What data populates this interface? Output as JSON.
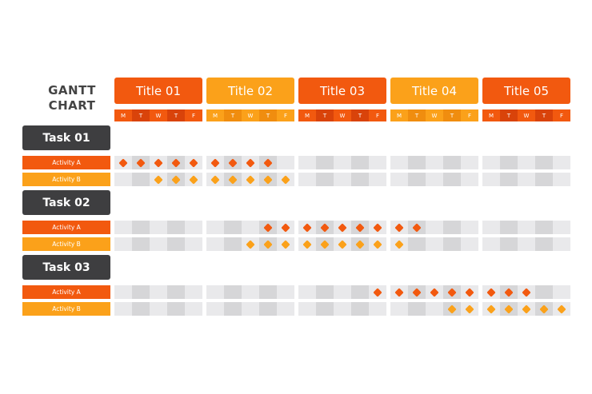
{
  "chart_data": {
    "type": "gantt",
    "title_lines": [
      "GANTT",
      "CHART"
    ],
    "weeks": [
      "Title 01",
      "Title 02",
      "Title 03",
      "Title 04",
      "Title 05"
    ],
    "days": [
      "M",
      "T",
      "W",
      "T",
      "F"
    ],
    "tasks": [
      {
        "name": "Task 01",
        "activities": [
          {
            "name": "Activity A",
            "color": "#f2590f",
            "active_days": [
              0,
              1,
              2,
              3,
              4,
              5,
              6,
              7,
              8
            ]
          },
          {
            "name": "Activity B",
            "color": "#fba11a",
            "active_days": [
              2,
              3,
              4,
              5,
              6,
              7,
              8,
              9
            ]
          }
        ]
      },
      {
        "name": "Task 02",
        "activities": [
          {
            "name": "Activity A",
            "color": "#f2590f",
            "active_days": [
              8,
              9,
              10,
              11,
              12,
              13,
              14,
              15,
              16
            ]
          },
          {
            "name": "Activity B",
            "color": "#fba11a",
            "active_days": [
              7,
              8,
              9,
              10,
              11,
              12,
              13,
              14,
              15
            ]
          }
        ]
      },
      {
        "name": "Task 03",
        "activities": [
          {
            "name": "Activity A",
            "color": "#f2590f",
            "active_days": [
              14,
              15,
              16,
              17,
              18,
              19,
              20,
              21,
              22
            ]
          },
          {
            "name": "Activity B",
            "color": "#fba11a",
            "active_days": [
              18,
              19,
              20,
              21,
              22,
              23,
              24
            ]
          }
        ]
      }
    ]
  },
  "colors": {
    "header_dark": "#f2590f",
    "header_light": "#fba11a",
    "day_dark": "#f2590f",
    "day_darker": "#d9430a",
    "day_light": "#fba11a",
    "day_lighter": "#f08d0f",
    "task_label": "#3e3e40",
    "cell_light": "#e9e9eb",
    "cell_dark": "#d6d6d8"
  }
}
